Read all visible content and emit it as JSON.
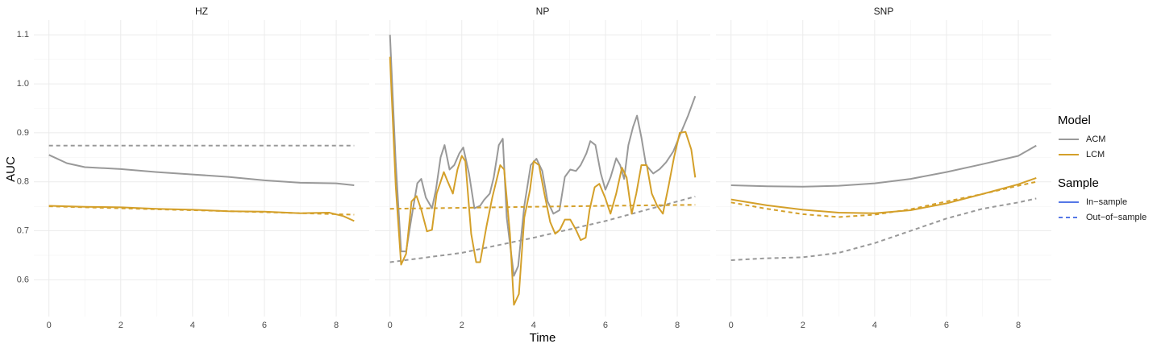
{
  "chart_data": {
    "type": "line",
    "x_label": "Time",
    "y_label": "AUC",
    "ylim": [
      0.525,
      1.13
    ],
    "yticks": [
      0.6,
      0.7,
      0.8,
      0.9,
      {
        "value": 1.0,
        "label": "1.0"
      },
      1.1
    ],
    "xlim": [
      -0.42,
      8.92
    ],
    "xticks": [
      0,
      2,
      4,
      6,
      8
    ],
    "grid": true,
    "legend_position": "right",
    "legend": [
      {
        "title": "Model",
        "entries": [
          {
            "label": "ACM",
            "color": "#999999",
            "dashed": false
          },
          {
            "label": "LCM",
            "color": "#d4a02a",
            "dashed": false
          }
        ]
      },
      {
        "title": "Sample",
        "entries": [
          {
            "label": "In−sample",
            "color": "#5577e6",
            "dashed": false
          },
          {
            "label": "Out−of−sample",
            "color": "#5577e6",
            "dashed": true
          }
        ]
      }
    ],
    "panels": [
      {
        "title": "HZ",
        "series": [
          {
            "name": "ACM",
            "sample": "Out−of−sample",
            "color": "#999999",
            "dashed": true,
            "x": [
              0,
              4,
              8.5
            ],
            "values": [
              0.874,
              0.874,
              0.874
            ]
          },
          {
            "name": "ACM",
            "sample": "In−sample",
            "color": "#999999",
            "dashed": false,
            "x": [
              0,
              0.5,
              1,
              2,
              3,
              4,
              5,
              6,
              7,
              8,
              8.5
            ],
            "values": [
              0.855,
              0.838,
              0.83,
              0.826,
              0.82,
              0.815,
              0.81,
              0.803,
              0.798,
              0.797,
              0.793
            ]
          },
          {
            "name": "LCM",
            "sample": "Out−of−sample",
            "color": "#d4a02a",
            "dashed": true,
            "x": [
              0,
              2,
              4,
              6,
              8.5
            ],
            "values": [
              0.75,
              0.746,
              0.742,
              0.738,
              0.733
            ]
          },
          {
            "name": "LCM",
            "sample": "In−sample",
            "color": "#d4a02a",
            "dashed": false,
            "x": [
              0,
              1,
              2,
              3,
              4,
              5,
              6,
              7,
              7.8,
              8.2,
              8.5
            ],
            "values": [
              0.751,
              0.749,
              0.748,
              0.745,
              0.743,
              0.74,
              0.739,
              0.736,
              0.737,
              0.73,
              0.72
            ]
          }
        ]
      },
      {
        "title": "NP",
        "series": [
          {
            "name": "ACM",
            "sample": "Out−of−sample",
            "color": "#999999",
            "dashed": true,
            "x": [
              0,
              2,
              4,
              6,
              8.5
            ],
            "values": [
              0.636,
              0.655,
              0.686,
              0.72,
              0.77
            ]
          },
          {
            "name": "ACM",
            "sample": "In−sample",
            "color": "#999999",
            "dashed": false,
            "x": [
              0,
              0.16,
              0.31,
              0.45,
              0.6,
              0.76,
              0.87,
              1.0,
              1.17,
              1.28,
              1.41,
              1.52,
              1.66,
              1.79,
              1.93,
              2.04,
              2.2,
              2.35,
              2.51,
              2.62,
              2.78,
              2.89,
              3.03,
              3.14,
              3.25,
              3.45,
              3.57,
              3.74,
              3.92,
              4.08,
              4.24,
              4.39,
              4.55,
              4.72,
              4.87,
              5.02,
              5.18,
              5.31,
              5.47,
              5.58,
              5.72,
              5.87,
              6.0,
              6.14,
              6.3,
              6.41,
              6.52,
              6.64,
              6.77,
              6.88,
              7.0,
              7.13,
              7.33,
              7.51,
              7.69,
              7.89,
              8.1,
              8.3,
              8.5
            ],
            "values": [
              1.1,
              0.84,
              0.658,
              0.658,
              0.727,
              0.797,
              0.806,
              0.768,
              0.746,
              0.784,
              0.85,
              0.875,
              0.825,
              0.834,
              0.858,
              0.87,
              0.817,
              0.746,
              0.751,
              0.763,
              0.776,
              0.809,
              0.875,
              0.888,
              0.727,
              0.608,
              0.628,
              0.751,
              0.834,
              0.847,
              0.822,
              0.76,
              0.735,
              0.742,
              0.81,
              0.825,
              0.822,
              0.834,
              0.858,
              0.883,
              0.875,
              0.817,
              0.784,
              0.809,
              0.848,
              0.834,
              0.806,
              0.875,
              0.912,
              0.935,
              0.891,
              0.834,
              0.817,
              0.826,
              0.84,
              0.862,
              0.9,
              0.935,
              0.975
            ]
          },
          {
            "name": "LCM",
            "sample": "Out−of−sample",
            "color": "#d4a02a",
            "dashed": true,
            "x": [
              0,
              2,
              4,
              6,
              8.5
            ],
            "values": [
              0.745,
              0.747,
              0.749,
              0.751,
              0.753
            ]
          },
          {
            "name": "LCM",
            "sample": "In−sample",
            "color": "#d4a02a",
            "dashed": false,
            "x": [
              0,
              0.16,
              0.31,
              0.45,
              0.6,
              0.74,
              0.87,
              1.03,
              1.17,
              1.3,
              1.5,
              1.61,
              1.75,
              1.88,
              2.0,
              2.1,
              2.26,
              2.4,
              2.51,
              2.69,
              2.85,
              3.07,
              3.18,
              3.34,
              3.45,
              3.59,
              3.74,
              3.9,
              4.0,
              4.15,
              4.3,
              4.46,
              4.6,
              4.73,
              4.87,
              5.02,
              5.18,
              5.31,
              5.45,
              5.56,
              5.7,
              5.83,
              5.99,
              6.14,
              6.3,
              6.46,
              6.59,
              6.73,
              6.86,
              7.0,
              7.15,
              7.29,
              7.44,
              7.6,
              7.76,
              7.91,
              8.07,
              8.23,
              8.39,
              8.5
            ],
            "values": [
              1.055,
              0.792,
              0.631,
              0.653,
              0.76,
              0.771,
              0.743,
              0.699,
              0.702,
              0.776,
              0.82,
              0.8,
              0.776,
              0.825,
              0.853,
              0.842,
              0.694,
              0.636,
              0.636,
              0.71,
              0.768,
              0.834,
              0.825,
              0.694,
              0.549,
              0.571,
              0.727,
              0.784,
              0.842,
              0.834,
              0.776,
              0.718,
              0.694,
              0.702,
              0.723,
              0.723,
              0.702,
              0.681,
              0.686,
              0.743,
              0.789,
              0.796,
              0.768,
              0.735,
              0.776,
              0.829,
              0.809,
              0.735,
              0.776,
              0.834,
              0.834,
              0.776,
              0.751,
              0.735,
              0.792,
              0.85,
              0.9,
              0.902,
              0.866,
              0.809
            ]
          }
        ]
      },
      {
        "title": "SNP",
        "series": [
          {
            "name": "ACM",
            "sample": "Out−of−sample",
            "color": "#999999",
            "dashed": true,
            "x": [
              0,
              1,
              2,
              3,
              4,
              5,
              6,
              7,
              8,
              8.5
            ],
            "values": [
              0.64,
              0.644,
              0.646,
              0.655,
              0.675,
              0.7,
              0.725,
              0.745,
              0.758,
              0.766
            ]
          },
          {
            "name": "ACM",
            "sample": "In−sample",
            "color": "#999999",
            "dashed": false,
            "x": [
              0,
              1,
              2,
              3,
              4,
              5,
              6,
              7,
              8,
              8.5
            ],
            "values": [
              0.793,
              0.791,
              0.79,
              0.792,
              0.797,
              0.806,
              0.82,
              0.836,
              0.853,
              0.874
            ]
          },
          {
            "name": "LCM",
            "sample": "Out−of−sample",
            "color": "#d4a02a",
            "dashed": true,
            "x": [
              0,
              1,
              2,
              3,
              4,
              5,
              6,
              7,
              8,
              8.5
            ],
            "values": [
              0.758,
              0.745,
              0.734,
              0.728,
              0.733,
              0.744,
              0.76,
              0.775,
              0.792,
              0.8
            ]
          },
          {
            "name": "LCM",
            "sample": "In−sample",
            "color": "#d4a02a",
            "dashed": false,
            "x": [
              0,
              1,
              2,
              3,
              4,
              5,
              6,
              7,
              8,
              8.5
            ],
            "values": [
              0.764,
              0.752,
              0.743,
              0.737,
              0.736,
              0.742,
              0.756,
              0.775,
              0.795,
              0.808
            ]
          }
        ]
      }
    ]
  }
}
